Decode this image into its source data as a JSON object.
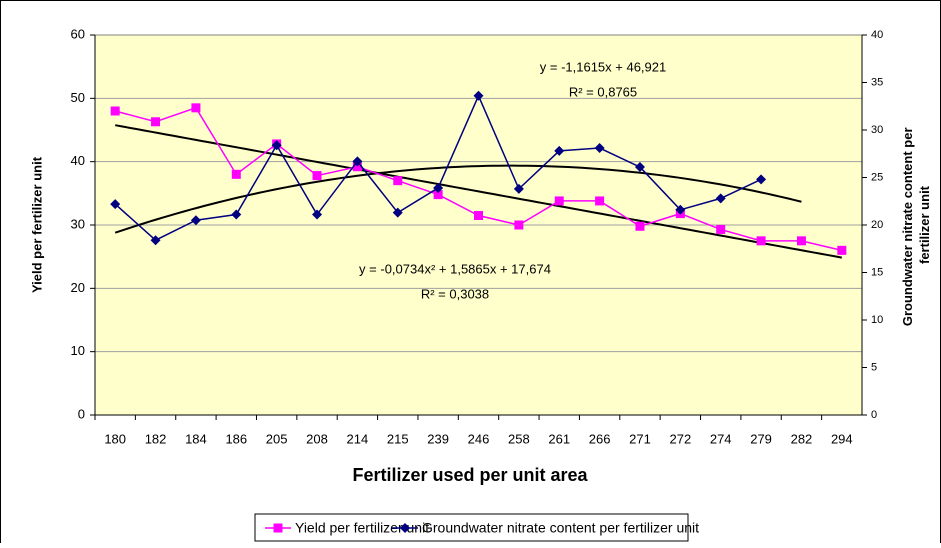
{
  "chart_data": {
    "type": "line",
    "xlabel": "Fertilizer used per unit area",
    "ylabel": "Yield per fertilizer unit",
    "y2label": [
      "Groundwater nitrate content per",
      "fertilizer unit"
    ],
    "categories": [
      "180",
      "182",
      "184",
      "186",
      "205",
      "208",
      "214",
      "215",
      "239",
      "246",
      "258",
      "261",
      "266",
      "271",
      "272",
      "274",
      "279",
      "282",
      "294"
    ],
    "series": [
      {
        "name": "Yield per fertilizer unit",
        "color": "#ff00ff",
        "marker": "square",
        "axis": "y",
        "values": [
          48,
          46.3,
          48.5,
          38,
          42.8,
          37.8,
          39.2,
          37,
          34.8,
          31.5,
          30,
          33.8,
          33.8,
          29.8,
          31.8,
          29.3,
          27.5,
          27.5,
          26
        ]
      },
      {
        "name": "Groundwater nitrate content per fertilizer unit",
        "color": "#000080",
        "marker": "diamond",
        "axis": "y2",
        "values": [
          22.2,
          18.4,
          20.5,
          21.1,
          28.4,
          21.1,
          26.7,
          21.3,
          23.9,
          33.6,
          23.8,
          27.8,
          28.1,
          26.1,
          21.6,
          22.8,
          24.8,
          null,
          null
        ]
      }
    ],
    "trendlines": [
      {
        "series": 0,
        "kind": "linear",
        "coefficients": [
          -1.1615,
          46.921
        ],
        "x_range": [
          1,
          19
        ],
        "equation": "y = -1,1615x + 46,921",
        "r2": "R² = 0,8765"
      },
      {
        "series": 1,
        "kind": "polynomial",
        "coefficients": [
          -0.0734,
          1.5865,
          17.674
        ],
        "x_range": [
          1,
          18
        ],
        "equation": "y = -0,0734x² + 1,5865x + 17,674",
        "r2": "R² = 0,3038"
      }
    ],
    "ylim": [
      0,
      60
    ],
    "yticks": [
      0,
      10,
      20,
      30,
      40,
      50,
      60
    ],
    "y2lim": [
      0,
      40
    ],
    "y2ticks": [
      0,
      5,
      10,
      15,
      20,
      25,
      30,
      35,
      40
    ],
    "grid": true,
    "legend": "bottom"
  }
}
